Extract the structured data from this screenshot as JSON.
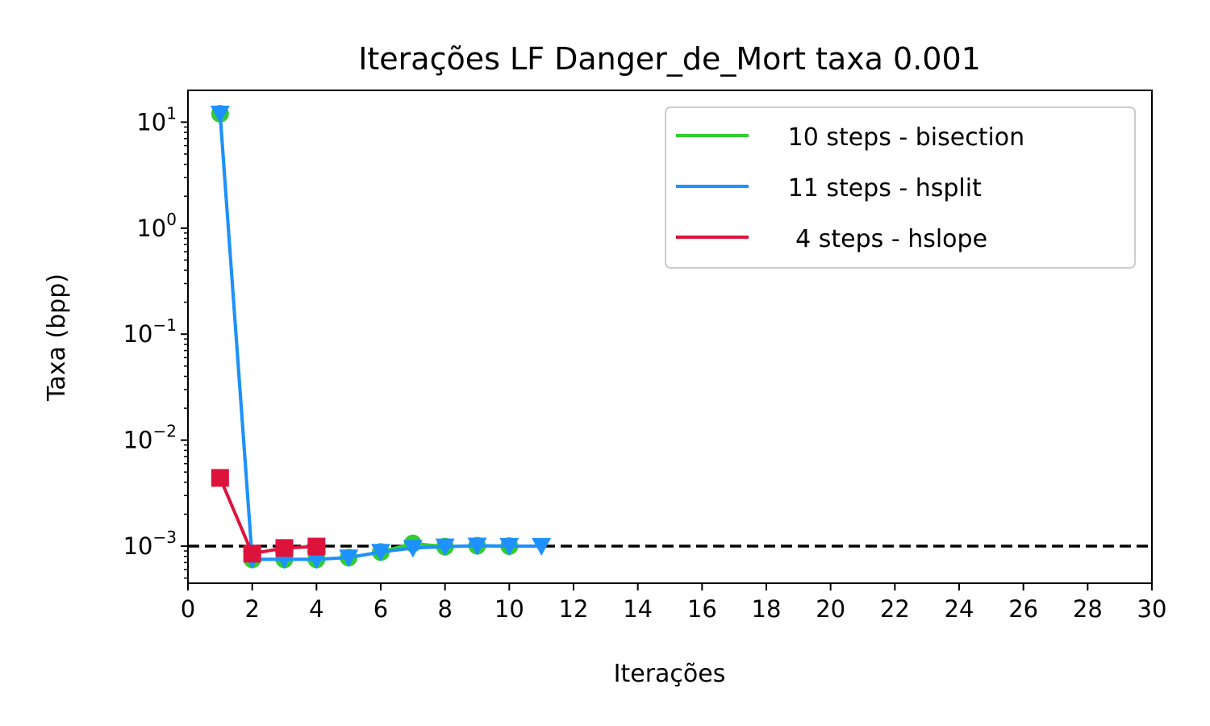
{
  "chart_data": {
    "type": "line",
    "title": "Iterações LF Danger_de_Mort taxa 0.001",
    "xlabel": "Iterações",
    "ylabel": "Taxa (bpp)",
    "xlim": [
      0,
      30
    ],
    "ylim_log10": [
      -3.35,
      1.3
    ],
    "yscale": "log",
    "x_ticks": [
      "0",
      "2",
      "4",
      "6",
      "8",
      "10",
      "12",
      "14",
      "16",
      "18",
      "20",
      "22",
      "24",
      "26",
      "28",
      "30"
    ],
    "y_ticks": [
      {
        "base": "10",
        "exp": "1",
        "log10": 1
      },
      {
        "base": "10",
        "exp": "0",
        "log10": 0
      },
      {
        "base": "10",
        "exp": "−1",
        "log10": -1
      },
      {
        "base": "10",
        "exp": "−2",
        "log10": -2
      },
      {
        "base": "10",
        "exp": "−3",
        "log10": -3
      }
    ],
    "reference_line": {
      "y": 0.001,
      "style": "dashed",
      "color": "#000000"
    },
    "legend_position": "top-right",
    "grid": false,
    "series": [
      {
        "name": "   10 steps - bisection",
        "color": "#32cd32",
        "marker": "circle",
        "x": [
          1,
          2,
          3,
          4,
          5,
          6,
          7,
          8,
          9,
          10
        ],
        "y": [
          12,
          0.00075,
          0.00075,
          0.00075,
          0.00078,
          0.00088,
          0.00106,
          0.00099,
          0.00101,
          0.001
        ]
      },
      {
        "name": "   11 steps - hsplit",
        "color": "#1e90ff",
        "marker": "triangle-down",
        "x": [
          1,
          2,
          3,
          4,
          5,
          6,
          7,
          8,
          9,
          10,
          11
        ],
        "y": [
          12,
          0.00075,
          0.00075,
          0.00075,
          0.00078,
          0.00088,
          0.00096,
          0.00099,
          0.00101,
          0.001,
          0.001
        ]
      },
      {
        "name": "    4 steps - hslope",
        "color": "#dc143c",
        "marker": "square",
        "x": [
          1,
          2,
          3,
          4
        ],
        "y": [
          0.0044,
          0.00085,
          0.00096,
          0.00099
        ]
      }
    ]
  }
}
